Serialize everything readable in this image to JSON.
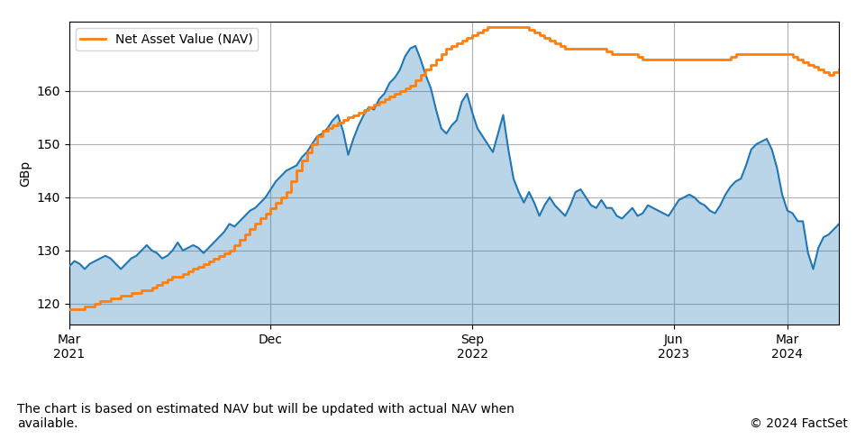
{
  "chart_data": {
    "type": "line",
    "ylabel": "GBp",
    "annotations": [
      "© 2024 FactSet"
    ],
    "footnote": "The chart is based on estimated NAV but will be updated with actual NAV when\navailable.",
    "ylim": [
      116,
      173
    ],
    "yticks": [
      120,
      130,
      140,
      150,
      160
    ],
    "grid": true,
    "legend": "upper left",
    "categories": [
      "Mar\n2021",
      null,
      null,
      null,
      null,
      null,
      null,
      null,
      null,
      null,
      null,
      null,
      null,
      null,
      null,
      null,
      null,
      null,
      null,
      null,
      null,
      null,
      null,
      null,
      null,
      null,
      null,
      null,
      null,
      null,
      null,
      null,
      null,
      null,
      null,
      null,
      null,
      null,
      null,
      "Dec",
      null,
      null,
      null,
      null,
      null,
      null,
      null,
      null,
      null,
      null,
      null,
      null,
      null,
      null,
      null,
      null,
      null,
      null,
      null,
      null,
      null,
      null,
      null,
      null,
      null,
      null,
      null,
      null,
      null,
      null,
      null,
      null,
      null,
      null,
      null,
      null,
      null,
      null,
      "Sep\n2022",
      null,
      null,
      null,
      null,
      null,
      null,
      null,
      null,
      null,
      null,
      null,
      null,
      null,
      null,
      null,
      null,
      null,
      null,
      null,
      null,
      null,
      null,
      null,
      null,
      null,
      null,
      null,
      null,
      null,
      null,
      null,
      null,
      null,
      null,
      null,
      null,
      null,
      null,
      "Jun\n2023",
      null,
      null,
      null,
      null,
      null,
      null,
      null,
      null,
      null,
      null,
      null,
      null,
      null,
      null,
      null,
      null,
      null,
      null,
      null,
      null,
      null,
      "Mar\n2024",
      null,
      null,
      null,
      null,
      null,
      null,
      null,
      null,
      null,
      null
    ],
    "series": [
      {
        "type": "area",
        "values": [
          127.0,
          128.0,
          127.5,
          126.5,
          127.5,
          128.0,
          128.5,
          129.0,
          128.5,
          127.5,
          126.5,
          127.5,
          128.5,
          129.0,
          130.0,
          131.0,
          130.0,
          129.5,
          128.5,
          129.0,
          130.0,
          131.5,
          130.0,
          130.5,
          131.0,
          130.5,
          129.5,
          130.5,
          131.5,
          132.5,
          133.5,
          135.0,
          134.5,
          135.5,
          136.5,
          137.5,
          138.0,
          139.0,
          140.0,
          141.5,
          143.0,
          144.0,
          145.0,
          145.5,
          146.0,
          147.5,
          148.5,
          150.0,
          151.5,
          152.0,
          153.0,
          154.5,
          155.5,
          152.5,
          148.0,
          151.0,
          153.5,
          155.5,
          157.0,
          156.5,
          158.5,
          159.5,
          161.5,
          162.5,
          164.0,
          166.5,
          168.0,
          168.5,
          166.0,
          163.0,
          160.5,
          156.5,
          153.0,
          152.0,
          153.5,
          154.5,
          158.0,
          159.5,
          156.0,
          153.0,
          151.5,
          150.0,
          148.5,
          152.0,
          155.5,
          149.0,
          143.5,
          141.0,
          139.0,
          141.0,
          139.0,
          136.5,
          138.5,
          140.0,
          138.5,
          137.5,
          136.5,
          138.5,
          141.0,
          141.5,
          140.0,
          138.5,
          138.0,
          139.5,
          138.0,
          138.0,
          136.5,
          136.0,
          137.0,
          138.0,
          136.5,
          137.0,
          138.5,
          138.0,
          137.5,
          137.0,
          136.5,
          138.0,
          139.5,
          140.0,
          140.5,
          140.0,
          139.0,
          138.5,
          137.5,
          137.0,
          138.5,
          140.5,
          142.0,
          143.0,
          143.5,
          146.0,
          149.0,
          150.0,
          150.5,
          151.0,
          149.0,
          145.5,
          140.5,
          137.5,
          137.0,
          135.5,
          135.5,
          129.5,
          126.5,
          130.5,
          132.5,
          133.0,
          134.0,
          135.0
        ]
      },
      {
        "name": "Net Asset Value (NAV)",
        "type": "step",
        "values": [
          119.0,
          119.0,
          119.0,
          119.5,
          119.5,
          120.0,
          120.5,
          120.5,
          121.0,
          121.0,
          121.5,
          121.5,
          122.0,
          122.0,
          122.5,
          122.5,
          123.0,
          123.5,
          124.0,
          124.5,
          125.0,
          125.0,
          125.5,
          126.0,
          126.5,
          127.0,
          127.5,
          128.0,
          128.5,
          129.0,
          129.5,
          130.0,
          131.0,
          132.0,
          133.0,
          134.0,
          135.0,
          136.0,
          137.0,
          138.0,
          139.0,
          140.0,
          141.0,
          143.0,
          145.0,
          147.0,
          148.5,
          150.0,
          151.5,
          152.5,
          153.0,
          153.5,
          154.0,
          154.5,
          155.0,
          155.5,
          156.0,
          156.5,
          157.0,
          157.5,
          158.0,
          158.5,
          159.0,
          159.5,
          160.0,
          160.5,
          161.0,
          162.0,
          163.0,
          164.0,
          165.0,
          166.0,
          167.0,
          168.0,
          168.5,
          169.0,
          169.5,
          170.0,
          170.5,
          171.0,
          171.5,
          172.0,
          172.0,
          172.0,
          172.0,
          172.0,
          172.0,
          172.0,
          172.0,
          171.5,
          171.0,
          170.5,
          170.0,
          169.5,
          169.0,
          168.5,
          168.0,
          168.0,
          168.0,
          168.0,
          168.0,
          168.0,
          168.0,
          168.0,
          167.5,
          167.0,
          167.0,
          167.0,
          167.0,
          167.0,
          166.5,
          166.0,
          166.0,
          166.0,
          166.0,
          166.0,
          166.0,
          166.0,
          166.0,
          166.0,
          166.0,
          166.0,
          166.0,
          166.0,
          166.0,
          166.0,
          166.0,
          166.0,
          166.5,
          167.0,
          167.0,
          167.0,
          167.0,
          167.0,
          167.0,
          167.0,
          167.0,
          167.0,
          167.0,
          167.0,
          166.5,
          166.0,
          165.5,
          165.0,
          164.5,
          164.0,
          163.5,
          163.0,
          163.5,
          164.0
        ]
      }
    ]
  }
}
